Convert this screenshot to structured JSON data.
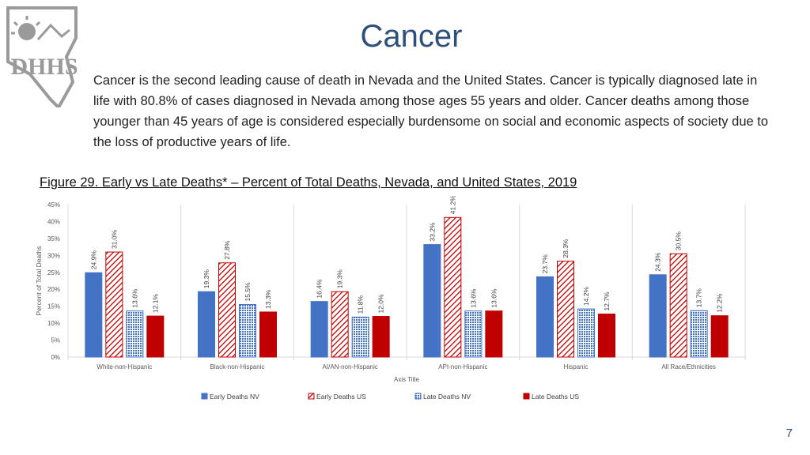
{
  "page": {
    "title": "Cancer",
    "intro": "Cancer is the second leading cause of death in Nevada and the United States. Cancer is typically diagnosed late in life with 80.8% of cases diagnosed in Nevada among those ages 55 years and older. Cancer deaths among those younger than 45 years of age is considered especially burdensome on social and economic aspects of society due to the loss of productive years of life.",
    "figure_title": "Figure 29. Early vs Late Deaths* – Percent of Total Deaths, Nevada, and United States, 2019",
    "page_number": "7",
    "logo_text": "DHHS"
  },
  "chart_data": {
    "type": "bar",
    "categories": [
      "White-non-Hispanic",
      "Black-non-Hispanic",
      "AI/AN-non-Hispanic",
      "API-non-Hispanic",
      "Hispanic",
      "All Race/Ethnicities"
    ],
    "series": [
      {
        "name": "Early Deaths NV",
        "values": [
          24.9,
          19.3,
          16.4,
          33.2,
          23.7,
          24.3
        ],
        "color": "#4472c4",
        "pattern": "solid"
      },
      {
        "name": "Early Deaths US",
        "values": [
          31.0,
          27.8,
          19.3,
          41.2,
          28.3,
          30.5
        ],
        "color": "#c00000",
        "pattern": "diagonal"
      },
      {
        "name": "Late Deaths NV",
        "values": [
          13.6,
          15.5,
          11.8,
          13.6,
          14.2,
          13.7
        ],
        "color": "#4472c4",
        "pattern": "dots"
      },
      {
        "name": "Late Deaths US",
        "values": [
          12.1,
          13.3,
          12.0,
          13.6,
          12.7,
          12.2
        ],
        "color": "#c00000",
        "pattern": "solid"
      }
    ],
    "data_labels": [
      [
        "24.9%",
        "31.0%",
        "13.6%",
        "12.1%"
      ],
      [
        "19.3%",
        "27.8%",
        "15.5%",
        "13.3%"
      ],
      [
        "16.4%",
        "19.3%",
        "11.8%",
        "12.0%"
      ],
      [
        "33.2%",
        "41.2%",
        "13.6%",
        "13.6%"
      ],
      [
        "23.7%",
        "28.3%",
        "14.2%",
        "12.7%"
      ],
      [
        "24.3%",
        "30.5%",
        "13.7%",
        "12.2%"
      ]
    ],
    "yticks": [
      "0%",
      "5%",
      "10%",
      "15%",
      "20%",
      "25%",
      "30%",
      "35%",
      "40%",
      "45%"
    ],
    "ylim": [
      0,
      45
    ],
    "ylabel": "Percent of Total Deaths",
    "xlabel": "Axis Title",
    "legend_position": "bottom",
    "grid": false
  }
}
